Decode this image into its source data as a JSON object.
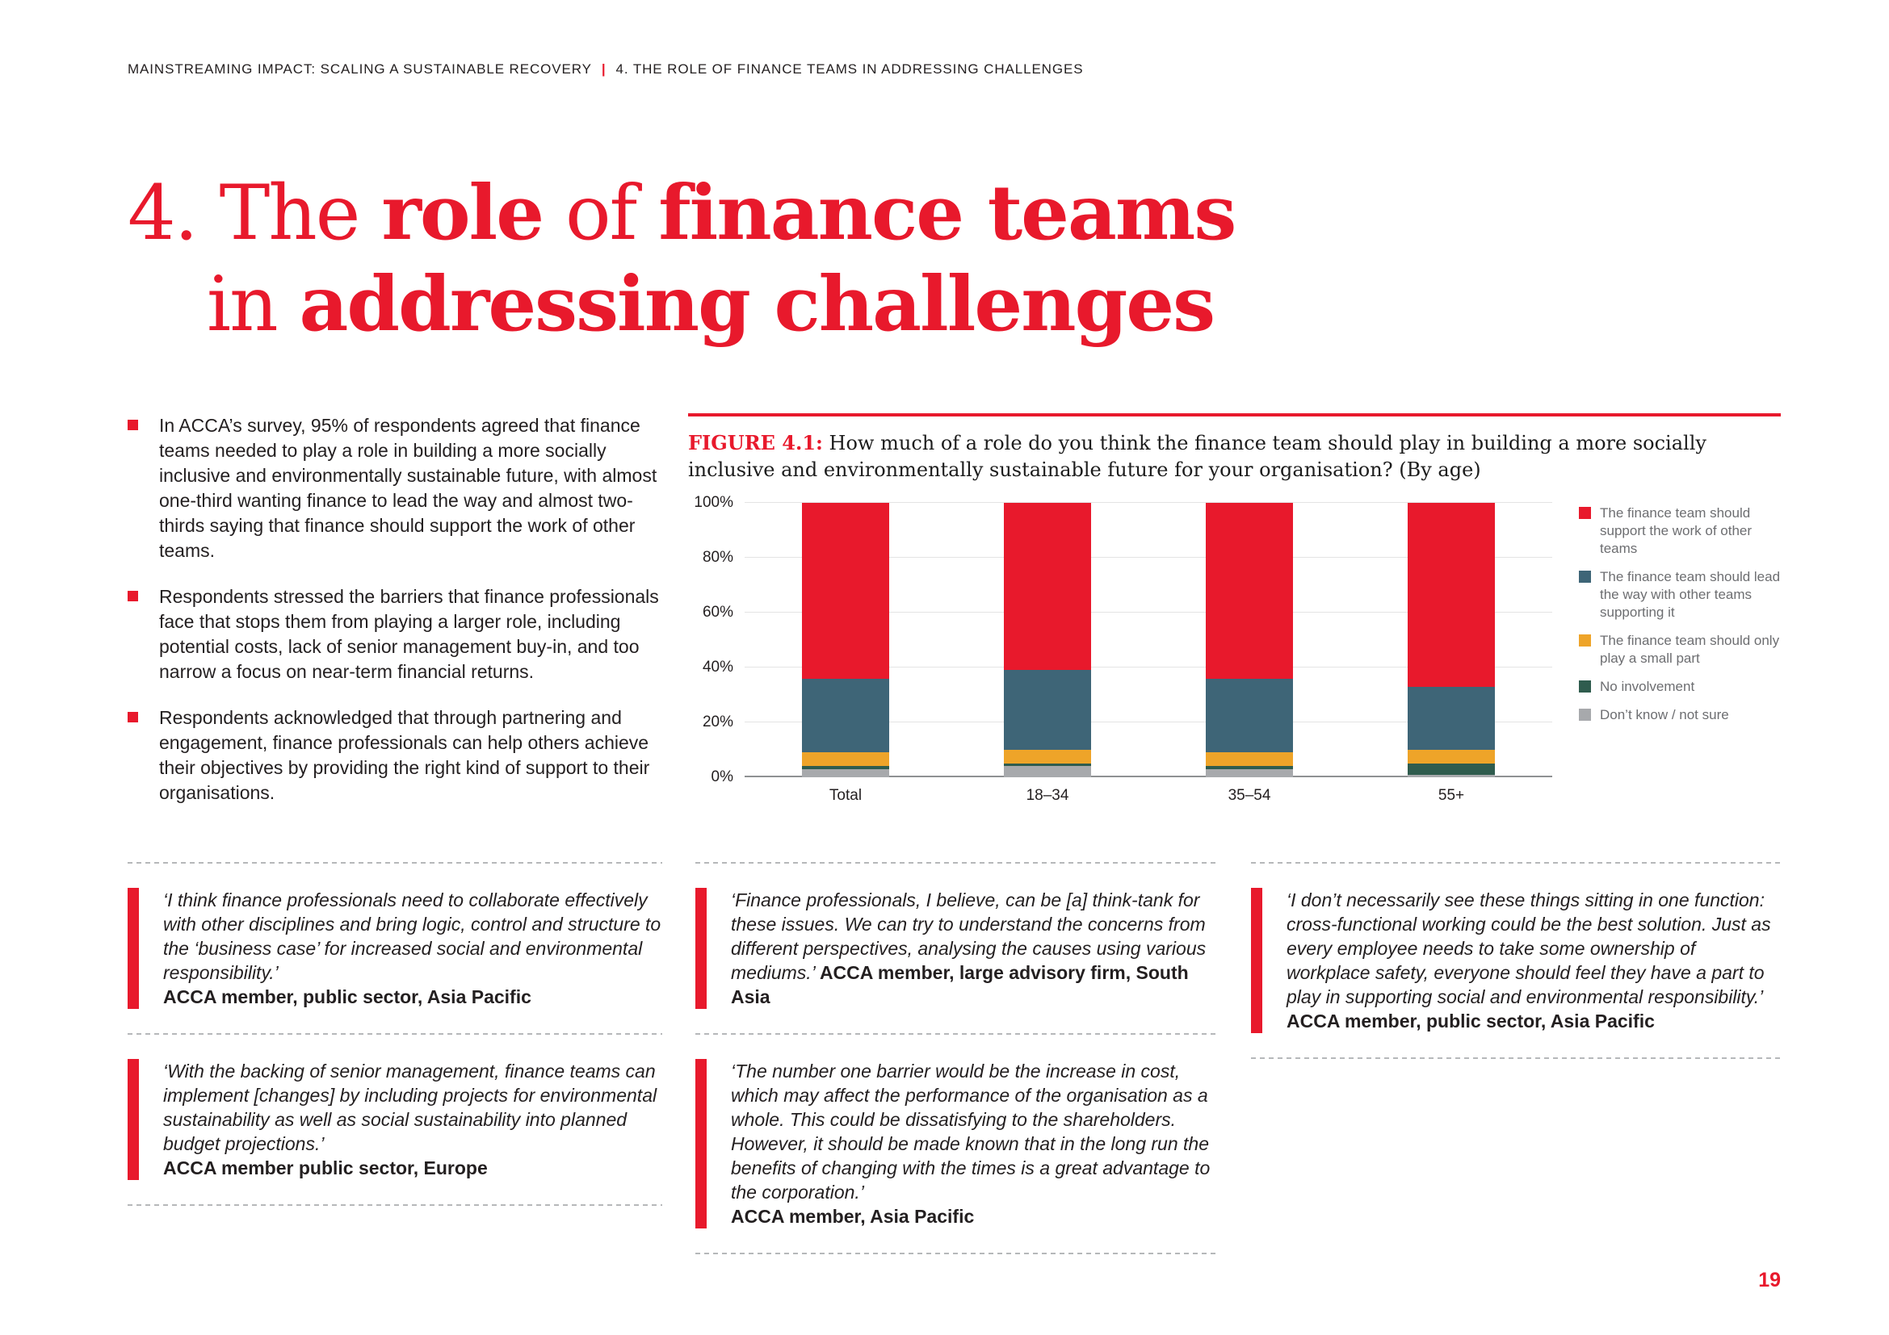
{
  "colors": {
    "accent_red": "#e8192c",
    "body_text": "#231f20",
    "legend_text": "#6d6e71"
  },
  "header": {
    "left": "MAINSTREAMING IMPACT: SCALING A SUSTAINABLE RECOVERY",
    "separator": "|",
    "right": "4. THE ROLE OF FINANCE TEAMS IN ADDRESSING CHALLENGES"
  },
  "title": {
    "l1a": "4. The ",
    "l1b": "role",
    "l1c": " of ",
    "l1d": "finance teams",
    "l2a": "in ",
    "l2b": "addressing challenges"
  },
  "intro": {
    "bullets": [
      "In ACCA’s survey, 95% of respondents agreed that finance teams needed to play a role in building a more socially inclusive and environmentally sustainable future, with almost one-third wanting finance to lead the way and almost two-thirds saying that finance should support the work of other teams.",
      "Respondents stressed the barriers that finance professionals face that stops them from playing a larger role, including potential costs, lack of senior management buy-in, and too narrow a focus on near-term financial returns.",
      "Respondents acknowledged that through partnering and engagement, finance professionals can help others achieve their objectives by providing the right kind of support to their organisations."
    ]
  },
  "figure": {
    "label": "FIGURE 4.1:",
    "caption": "How much of a role do you think the finance team should play in building a more socially inclusive and environmentally sustainable future for your organisation? (By age)"
  },
  "chart_data": {
    "type": "bar",
    "stacked": true,
    "categories": [
      "Total",
      "18–34",
      "35–54",
      "55+"
    ],
    "series": [
      {
        "name": "The finance team should support the work of other teams",
        "color": "#e8192c",
        "values": [
          64,
          61,
          64,
          67
        ]
      },
      {
        "name": "The finance team should lead the way with other teams supporting it",
        "color": "#3e6577",
        "values": [
          27,
          29,
          27,
          23
        ]
      },
      {
        "name": "The finance team should only play a small part",
        "color": "#eea429",
        "values": [
          5,
          5,
          5,
          5
        ]
      },
      {
        "name": "No involvement",
        "color": "#2f5c4e",
        "values": [
          1,
          1,
          1,
          4
        ]
      },
      {
        "name": "Don’t know / not sure",
        "color": "#a7a9ac",
        "values": [
          3,
          4,
          3,
          1
        ]
      }
    ],
    "yticks": [
      100,
      80,
      60,
      40,
      20,
      0
    ],
    "ylim": [
      0,
      100
    ],
    "grid": true,
    "legend_position": "right"
  },
  "quotes": {
    "q1": {
      "text": "‘I think finance professionals need to collaborate effectively with other disciplines and bring logic, control and structure to the ‘business case’ for increased social and environmental responsibility.’",
      "attribution": "ACCA member, public sector, Asia Pacific"
    },
    "q2": {
      "text": "‘With the backing of senior management, finance teams can implement [changes] by including projects for environmental sustainability as well as social sustainability into planned budget projections.’",
      "attribution": "ACCA member public sector, Europe"
    },
    "q3": {
      "text": "‘Finance professionals, I believe, can be [a] think-tank for these issues. We can try to understand the concerns from different perspectives, analysing the causes using various mediums.’",
      "attribution": "ACCA member, large advisory firm, South Asia"
    },
    "q4": {
      "text": "‘The number one barrier would be the increase in cost, which may affect the performance of the organisation as a whole. This could be dissatisfying to the shareholders. However, it should be made known that in the long run the benefits of changing with the times is a great advantage to the corporation.’",
      "attribution": "ACCA member, Asia Pacific"
    },
    "q5": {
      "text": "‘I don’t necessarily see these things sitting in one function: cross-functional working could be the best solution. Just as every employee needs to take some ownership of workplace safety, everyone should feel they have a part to play in supporting social and environmental responsibility.’",
      "attribution": "ACCA member, public sector, Asia Pacific"
    }
  },
  "page_number": "19"
}
